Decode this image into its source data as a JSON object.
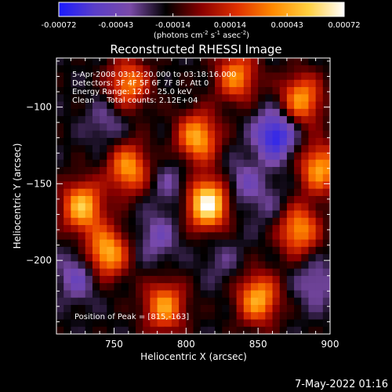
{
  "chart_data": {
    "type": "heatmap",
    "title": "Reconstructed RHESSI Image",
    "xlabel": "Heliocentric X (arcsec)",
    "ylabel": "Heliocentric Y (arcsec)",
    "xlim": [
      710,
      900
    ],
    "ylim": [
      -248,
      -68
    ],
    "x_ticks": [
      750,
      800,
      850,
      900
    ],
    "y_ticks": [
      -100,
      -150,
      -200
    ],
    "colorbar": {
      "min": -0.00072,
      "max": 0.00072,
      "ticks": [
        "-0.00072",
        "-0.00043",
        "-0.00014",
        "0.00014",
        "0.00043",
        "0.00072"
      ],
      "unit_parts": [
        "(photons cm",
        "-2",
        " s",
        "-1",
        " asec",
        "-2",
        ")"
      ],
      "colors": [
        "#1a1aff",
        "#5a3ec8",
        "#7a4aa8",
        "#000000",
        "#8a0000",
        "#e03000",
        "#ff8a00",
        "#ffd040",
        "#ffffff"
      ]
    },
    "annotations": [
      "5-Apr-2008 03:12:20.000 to 03:18:16.000",
      "Detectors: 3F 4F 5F 6F 7F 8F, Att 0",
      "Energy Range: 12.0 - 25.0 keV",
      "Clean     Total counts: 2.12E+04"
    ],
    "peak_label": "Position of Peak = [815,-163]",
    "peak": [
      815,
      -163
    ],
    "sources": [
      {
        "x": 815,
        "y": -163,
        "v": 0.00072
      },
      {
        "x": 808,
        "y": -120,
        "v": 0.00045
      },
      {
        "x": 760,
        "y": -140,
        "v": 0.0004
      },
      {
        "x": 728,
        "y": -165,
        "v": 0.0005
      },
      {
        "x": 745,
        "y": -195,
        "v": 0.00048
      },
      {
        "x": 785,
        "y": -230,
        "v": 0.0004
      },
      {
        "x": 850,
        "y": -225,
        "v": 0.00045
      },
      {
        "x": 878,
        "y": -180,
        "v": 0.0004
      },
      {
        "x": 893,
        "y": -140,
        "v": 0.00042
      },
      {
        "x": 880,
        "y": -95,
        "v": 0.0004
      },
      {
        "x": 835,
        "y": -80,
        "v": 0.00035
      },
      {
        "x": 760,
        "y": -85,
        "v": 0.00035
      },
      {
        "x": 780,
        "y": -185,
        "v": -0.0004
      },
      {
        "x": 790,
        "y": -150,
        "v": -0.00035
      },
      {
        "x": 862,
        "y": -118,
        "v": -0.0007
      },
      {
        "x": 840,
        "y": -150,
        "v": -0.0004
      },
      {
        "x": 725,
        "y": -210,
        "v": -0.00045
      },
      {
        "x": 745,
        "y": -110,
        "v": -0.00035
      },
      {
        "x": 825,
        "y": -200,
        "v": -0.0003
      },
      {
        "x": 890,
        "y": -215,
        "v": -0.0004
      },
      {
        "x": 860,
        "y": -165,
        "v": -0.0003
      }
    ]
  },
  "footer": {
    "timestamp": "7-May-2022 01:16"
  }
}
